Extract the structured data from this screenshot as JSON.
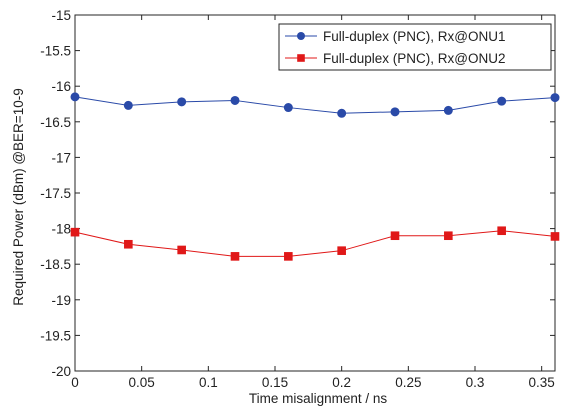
{
  "chart_data": {
    "type": "line",
    "title": "",
    "xlabel": "Time misalignment / ns",
    "ylabel": "Required Power (dBm) @BER=10-9",
    "xlim": [
      0,
      0.36
    ],
    "ylim": [
      -20,
      -15
    ],
    "x_ticks": [
      0,
      0.05,
      0.1,
      0.15,
      0.2,
      0.25,
      0.3,
      0.35
    ],
    "x_tick_labels": [
      "0",
      "0.05",
      "0.1",
      "0.15",
      "0.2",
      "0.25",
      "0.3",
      "0.35"
    ],
    "y_ticks": [
      -15,
      -15.5,
      -16,
      -16.5,
      -17,
      -17.5,
      -18,
      -18.5,
      -19,
      -19.5,
      -20
    ],
    "y_tick_labels": [
      "-15",
      "-15.5",
      "-16",
      "-16.5",
      "-17",
      "-17.5",
      "-18",
      "-18.5",
      "-19",
      "-19.5",
      "-20"
    ],
    "grid": false,
    "legend_position": "top-right",
    "x": [
      0,
      0.04,
      0.08,
      0.12,
      0.16,
      0.2,
      0.24,
      0.28,
      0.32,
      0.36
    ],
    "series": [
      {
        "name": "Full-duplex (PNC), Rx@ONU1",
        "color": "#2a4aa8",
        "marker": "circle",
        "values": [
          -16.15,
          -16.27,
          -16.22,
          -16.2,
          -16.3,
          -16.38,
          -16.36,
          -16.34,
          -16.21,
          -16.16
        ]
      },
      {
        "name": "Full-duplex (PNC), Rx@ONU2",
        "color": "#e01818",
        "marker": "square",
        "values": [
          -18.05,
          -18.22,
          -18.3,
          -18.39,
          -18.39,
          -18.31,
          -18.1,
          -18.1,
          -18.03,
          -18.11
        ]
      }
    ]
  }
}
